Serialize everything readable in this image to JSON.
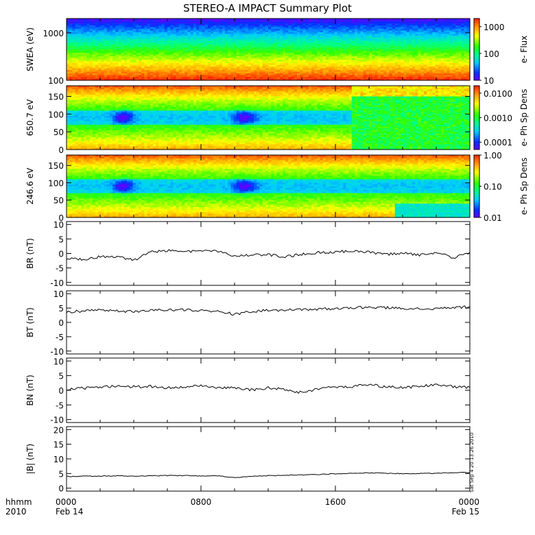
{
  "title": "STEREO-A IMPACT Summary Plot",
  "x_axis": {
    "ticks": [
      "0000",
      "0800",
      "1600",
      "0000"
    ],
    "dates": [
      "Feb 14",
      "",
      "",
      "Feb 15"
    ],
    "left_label_line1": "hhmm",
    "left_label_line2": "2010"
  },
  "stamp": "Sat Sep  4 20:13:26 2010",
  "chart_data": [
    {
      "type": "heatmap",
      "ylabel": "SWEA (eV)",
      "ylog": true,
      "ylim": [
        100,
        2000
      ],
      "yticks": [
        "1000",
        "100"
      ],
      "colorbar": {
        "label": "e- Flux",
        "ticks": [
          "1000",
          "100",
          "10"
        ],
        "log": true,
        "range": [
          10,
          2000
        ]
      }
    },
    {
      "type": "heatmap",
      "ylabel": "650.7 eV",
      "ylim": [
        0,
        180
      ],
      "yticks": [
        "150",
        "100",
        "50",
        "0"
      ],
      "colorbar": {
        "label": "e- Ph Sp Dens",
        "ticks": [
          "0.0100",
          "0.0010",
          "0.0001"
        ],
        "log": true,
        "range": [
          5e-05,
          0.02
        ]
      }
    },
    {
      "type": "heatmap",
      "ylabel": "246.6 eV",
      "ylim": [
        0,
        180
      ],
      "yticks": [
        "150",
        "100",
        "50",
        "0"
      ],
      "colorbar": {
        "label": "e- Ph Sp Dens",
        "ticks": [
          "1.00",
          "0.10",
          "0.01"
        ],
        "log": true,
        "range": [
          0.01,
          1.0
        ]
      }
    },
    {
      "type": "line",
      "ylabel": "BR (nT)",
      "ylim": [
        -11,
        11
      ],
      "yticks": [
        "10",
        "5",
        "0",
        "-5",
        "-10"
      ],
      "x_hours": [
        0,
        1,
        2,
        3,
        4,
        5,
        6,
        7,
        8,
        9,
        10,
        11,
        12,
        13,
        14,
        15,
        16,
        17,
        18,
        19,
        20,
        21,
        22,
        23,
        24
      ],
      "values": [
        -1.8,
        -2.0,
        -1.2,
        -1.0,
        -2.4,
        0.5,
        1.0,
        0.8,
        0.7,
        0.9,
        -1.0,
        -0.5,
        -0.4,
        -1.2,
        -0.3,
        0.3,
        0.5,
        0.9,
        0.4,
        -0.3,
        0.2,
        -0.6,
        0.4,
        -1.6,
        0.4
      ]
    },
    {
      "type": "line",
      "ylabel": "BT (nT)",
      "ylim": [
        -11,
        11
      ],
      "yticks": [
        "10",
        "5",
        "0",
        "-5",
        "-10"
      ],
      "x_hours": [
        0,
        1,
        2,
        3,
        4,
        5,
        6,
        7,
        8,
        9,
        10,
        11,
        12,
        13,
        14,
        15,
        16,
        17,
        18,
        19,
        20,
        21,
        22,
        23,
        24
      ],
      "values": [
        3.6,
        4.0,
        4.2,
        4.1,
        3.7,
        4.2,
        4.4,
        4.3,
        4.2,
        3.9,
        2.8,
        3.8,
        4.2,
        4.3,
        4.5,
        4.6,
        4.8,
        5.1,
        5.2,
        5.1,
        4.9,
        4.7,
        4.8,
        5.1,
        5.4
      ]
    },
    {
      "type": "line",
      "ylabel": "BN (nT)",
      "ylim": [
        -11,
        11
      ],
      "yticks": [
        "10",
        "5",
        "0",
        "-5",
        "-10"
      ],
      "x_hours": [
        0,
        1,
        2,
        3,
        4,
        5,
        6,
        7,
        8,
        9,
        10,
        11,
        12,
        13,
        14,
        15,
        16,
        17,
        18,
        19,
        20,
        21,
        22,
        23,
        24
      ],
      "values": [
        0.4,
        0.7,
        1.0,
        1.5,
        1.2,
        1.3,
        0.8,
        1.2,
        1.6,
        1.0,
        0.7,
        0.2,
        0.8,
        0.2,
        -0.8,
        0.5,
        1.1,
        1.3,
        1.9,
        1.2,
        0.9,
        1.4,
        2.0,
        1.2,
        1.0
      ]
    },
    {
      "type": "line",
      "ylabel": "|B| (nT)",
      "ylim": [
        -1,
        21
      ],
      "yticks": [
        "20",
        "15",
        "10",
        "5",
        "0"
      ],
      "x_hours": [
        0,
        1,
        2,
        3,
        4,
        5,
        6,
        7,
        8,
        9,
        10,
        11,
        12,
        13,
        14,
        15,
        16,
        17,
        18,
        19,
        20,
        21,
        22,
        23,
        24
      ],
      "values": [
        4.0,
        4.1,
        4.1,
        4.2,
        4.1,
        4.2,
        4.3,
        4.3,
        4.2,
        4.2,
        3.6,
        4.0,
        4.3,
        4.4,
        4.5,
        4.7,
        4.9,
        5.1,
        5.2,
        5.1,
        5.0,
        5.0,
        5.1,
        5.3,
        5.4
      ]
    }
  ]
}
